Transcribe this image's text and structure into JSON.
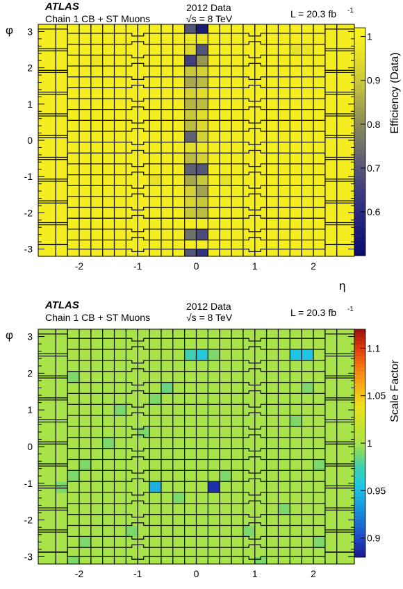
{
  "chart_data": [
    {
      "type": "heatmap",
      "experiment": "ATLAS",
      "selection": "Chain 1 CB + ST Muons",
      "dataset": "2012 Data",
      "energy": "√s = 8 TeV",
      "luminosity": "L = 20.3 fb",
      "lumi_exponent": "-1",
      "xlabel": "η",
      "ylabel": "φ",
      "zlabel": "Efficiency (Data)",
      "xlim": [
        -2.7,
        2.7
      ],
      "ylim": [
        -3.2,
        3.2
      ],
      "zlim": [
        0.5,
        1.02
      ],
      "xticks": [
        {
          "v": -2,
          "t": "-2"
        },
        {
          "v": -1,
          "t": "-1"
        },
        {
          "v": 0,
          "t": "0"
        },
        {
          "v": 1,
          "t": "1"
        },
        {
          "v": 2,
          "t": "2"
        }
      ],
      "yticks": [
        {
          "v": -3,
          "t": "-3"
        },
        {
          "v": -2,
          "t": "-2"
        },
        {
          "v": -1,
          "t": "-1"
        },
        {
          "v": 0,
          "t": "0"
        },
        {
          "v": 1,
          "t": "1"
        },
        {
          "v": 2,
          "t": "2"
        },
        {
          "v": 3,
          "t": "3"
        }
      ],
      "zticks": [
        {
          "v": 0.6,
          "t": "0.6"
        },
        {
          "v": 0.7,
          "t": "0.7"
        },
        {
          "v": 0.8,
          "t": "0.8"
        },
        {
          "v": 0.9,
          "t": "0.9"
        },
        {
          "v": 1,
          "t": "1"
        }
      ],
      "colorscale": [
        [
          0.5,
          "#0b0b6e"
        ],
        [
          0.6,
          "#2a2a82"
        ],
        [
          0.7,
          "#55557a"
        ],
        [
          0.8,
          "#8a8a5a"
        ],
        [
          0.9,
          "#c9c83a"
        ],
        [
          0.97,
          "#ece625"
        ],
        [
          1.02,
          "#fbf51c"
        ]
      ],
      "eta_edges": [
        -2.7,
        -2.4,
        -2.2,
        -2.0,
        -1.8,
        -1.6,
        -1.4,
        -1.2,
        -1.0,
        -0.8,
        -0.6,
        -0.4,
        -0.2,
        0,
        0.2,
        0.4,
        0.6,
        0.8,
        1.0,
        1.2,
        1.4,
        1.6,
        1.8,
        2.0,
        2.2,
        2.4,
        2.7
      ],
      "phi_edges": [
        -3.2,
        -3.0,
        -2.75,
        -2.45,
        -2.15,
        -1.85,
        -1.55,
        -1.25,
        -0.95,
        -0.65,
        -0.35,
        -0.05,
        0.25,
        0.55,
        0.85,
        1.15,
        1.45,
        1.75,
        2.05,
        2.35,
        2.65,
        2.95,
        3.2
      ],
      "default_value": 0.995,
      "cells": [
        {
          "eta": -0.1,
          "phi": -3.1,
          "v": 0.7
        },
        {
          "eta": 0.1,
          "phi": -3.1,
          "v": 0.62
        },
        {
          "eta": -0.1,
          "phi": -2.6,
          "v": 0.75
        },
        {
          "eta": 0.1,
          "phi": -2.6,
          "v": 0.68
        },
        {
          "eta": -0.1,
          "phi": -2.0,
          "v": 0.9
        },
        {
          "eta": 0.1,
          "phi": -2.0,
          "v": 0.88
        },
        {
          "eta": -0.1,
          "phi": -1.7,
          "v": 0.93
        },
        {
          "eta": 0.1,
          "phi": -1.7,
          "v": 0.9
        },
        {
          "eta": -0.1,
          "phi": -1.4,
          "v": 0.92
        },
        {
          "eta": 0.1,
          "phi": -1.4,
          "v": 0.84
        },
        {
          "eta": -0.1,
          "phi": -1.1,
          "v": 0.85
        },
        {
          "eta": 0.1,
          "phi": -1.1,
          "v": 0.9
        },
        {
          "eta": -0.1,
          "phi": -0.8,
          "v": 0.72
        },
        {
          "eta": 0.1,
          "phi": -0.8,
          "v": 0.7
        },
        {
          "eta": -0.1,
          "phi": -0.5,
          "v": 0.88
        },
        {
          "eta": 0.1,
          "phi": -0.5,
          "v": 0.92
        },
        {
          "eta": -0.1,
          "phi": -0.2,
          "v": 0.95
        },
        {
          "eta": 0.1,
          "phi": -0.2,
          "v": 0.97
        },
        {
          "eta": -0.1,
          "phi": 0.1,
          "v": 0.72
        },
        {
          "eta": 0.1,
          "phi": 0.1,
          "v": 0.92
        },
        {
          "eta": -0.1,
          "phi": 0.4,
          "v": 0.88
        },
        {
          "eta": 0.1,
          "phi": 0.4,
          "v": 0.94
        },
        {
          "eta": -0.1,
          "phi": 0.7,
          "v": 0.9
        },
        {
          "eta": 0.1,
          "phi": 0.7,
          "v": 0.95
        },
        {
          "eta": -0.1,
          "phi": 1.0,
          "v": 0.87
        },
        {
          "eta": 0.1,
          "phi": 1.0,
          "v": 0.88
        },
        {
          "eta": -0.1,
          "phi": 1.3,
          "v": 0.92
        },
        {
          "eta": 0.1,
          "phi": 1.3,
          "v": 0.95
        },
        {
          "eta": -0.1,
          "phi": 1.6,
          "v": 0.85
        },
        {
          "eta": 0.1,
          "phi": 1.6,
          "v": 0.88
        },
        {
          "eta": -0.1,
          "phi": 1.9,
          "v": 0.9
        },
        {
          "eta": 0.1,
          "phi": 1.9,
          "v": 0.92
        },
        {
          "eta": -0.1,
          "phi": 2.2,
          "v": 0.65
        },
        {
          "eta": 0.1,
          "phi": 2.2,
          "v": 0.82
        },
        {
          "eta": -0.1,
          "phi": 2.5,
          "v": 0.94
        },
        {
          "eta": 0.1,
          "phi": 2.5,
          "v": 0.7
        },
        {
          "eta": -0.1,
          "phi": 2.8,
          "v": 0.97
        },
        {
          "eta": 0.1,
          "phi": 2.8,
          "v": 0.97
        },
        {
          "eta": -0.1,
          "phi": 3.05,
          "v": 0.7
        },
        {
          "eta": 0.1,
          "phi": 3.05,
          "v": 0.55
        },
        {
          "eta": -0.7,
          "phi": -1.1,
          "v": 0.96
        },
        {
          "eta": 0.5,
          "phi": -1.1,
          "v": 0.96
        },
        {
          "eta": -1.7,
          "phi": 2.2,
          "v": 0.97
        },
        {
          "eta": 1.7,
          "phi": 2.5,
          "v": 0.96
        },
        {
          "eta": 1.9,
          "phi": 2.5,
          "v": 0.97
        }
      ]
    },
    {
      "type": "heatmap",
      "experiment": "ATLAS",
      "selection": "Chain 1 CB + ST Muons",
      "dataset": "2012 Data",
      "energy": "√s = 8 TeV",
      "luminosity": "L = 20.3 fb",
      "lumi_exponent": "-1",
      "xlabel": "η",
      "ylabel": "φ",
      "zlabel": "Scale Factor",
      "xlim": [
        -2.7,
        2.7
      ],
      "ylim": [
        -3.2,
        3.2
      ],
      "zlim": [
        0.88,
        1.12
      ],
      "xticks": [
        {
          "v": -2,
          "t": "-2"
        },
        {
          "v": -1,
          "t": "-1"
        },
        {
          "v": 0,
          "t": "0"
        },
        {
          "v": 1,
          "t": "1"
        },
        {
          "v": 2,
          "t": "2"
        }
      ],
      "yticks": [
        {
          "v": -3,
          "t": "-3"
        },
        {
          "v": -2,
          "t": "-2"
        },
        {
          "v": -1,
          "t": "-1"
        },
        {
          "v": 0,
          "t": "0"
        },
        {
          "v": 1,
          "t": "1"
        },
        {
          "v": 2,
          "t": "2"
        },
        {
          "v": 3,
          "t": "3"
        }
      ],
      "zticks": [
        {
          "v": 0.9,
          "t": "0.9"
        },
        {
          "v": 0.95,
          "t": "0.95"
        },
        {
          "v": 1,
          "t": "1"
        },
        {
          "v": 1.05,
          "t": "1.05"
        },
        {
          "v": 1.1,
          "t": "1.1"
        }
      ],
      "colorscale": [
        [
          0.88,
          "#1a1a8c"
        ],
        [
          0.9,
          "#1c46c8"
        ],
        [
          0.93,
          "#1a90dd"
        ],
        [
          0.955,
          "#1ec6e6"
        ],
        [
          0.975,
          "#3ed0b0"
        ],
        [
          0.99,
          "#7dd86a"
        ],
        [
          1.0,
          "#a8e34a"
        ],
        [
          1.02,
          "#c9e32c"
        ],
        [
          1.04,
          "#f0de1e"
        ],
        [
          1.06,
          "#f7ad16"
        ],
        [
          1.08,
          "#f47a12"
        ],
        [
          1.1,
          "#e03a0c"
        ],
        [
          1.12,
          "#a01010"
        ]
      ],
      "eta_edges": [
        -2.7,
        -2.4,
        -2.2,
        -2.0,
        -1.8,
        -1.6,
        -1.4,
        -1.2,
        -1.0,
        -0.8,
        -0.6,
        -0.4,
        -0.2,
        0,
        0.2,
        0.4,
        0.6,
        0.8,
        1.0,
        1.2,
        1.4,
        1.6,
        1.8,
        2.0,
        2.2,
        2.4,
        2.7
      ],
      "phi_edges": [
        -3.2,
        -3.0,
        -2.75,
        -2.45,
        -2.15,
        -1.85,
        -1.55,
        -1.25,
        -0.95,
        -0.65,
        -0.35,
        -0.05,
        0.25,
        0.55,
        0.85,
        1.15,
        1.45,
        1.75,
        2.05,
        2.35,
        2.65,
        2.95,
        3.2
      ],
      "default_value": 1.0,
      "cells": [
        {
          "eta": -0.1,
          "phi": 2.5,
          "v": 0.975
        },
        {
          "eta": 0.1,
          "phi": 2.5,
          "v": 0.96
        },
        {
          "eta": 1.7,
          "phi": 2.5,
          "v": 0.955
        },
        {
          "eta": 1.9,
          "phi": 2.5,
          "v": 0.955
        },
        {
          "eta": -0.7,
          "phi": -1.1,
          "v": 0.945
        },
        {
          "eta": 0.3,
          "phi": -1.1,
          "v": 0.89
        },
        {
          "eta": -0.5,
          "phi": 1.6,
          "v": 0.985
        },
        {
          "eta": -0.7,
          "phi": 1.3,
          "v": 0.99
        },
        {
          "eta": -2.1,
          "phi": -3.05,
          "v": 0.99
        },
        {
          "eta": -1.9,
          "phi": -2.6,
          "v": 0.99
        },
        {
          "eta": -2.3,
          "phi": -1.1,
          "v": 0.99
        },
        {
          "eta": -2.1,
          "phi": -0.8,
          "v": 0.99
        },
        {
          "eta": -1.9,
          "phi": -0.5,
          "v": 0.99
        },
        {
          "eta": -2.1,
          "phi": 1.9,
          "v": 0.99
        },
        {
          "eta": 2.1,
          "phi": -2.6,
          "v": 0.99
        },
        {
          "eta": 1.5,
          "phi": -1.7,
          "v": 0.99
        },
        {
          "eta": 2.1,
          "phi": -0.5,
          "v": 0.99
        },
        {
          "eta": 1.9,
          "phi": 1.6,
          "v": 0.99
        },
        {
          "eta": 1.7,
          "phi": 0.7,
          "v": 0.99
        },
        {
          "eta": -0.3,
          "phi": -1.4,
          "v": 0.99
        },
        {
          "eta": 0.5,
          "phi": -0.8,
          "v": 0.99
        },
        {
          "eta": 0.3,
          "phi": 2.5,
          "v": 0.99
        },
        {
          "eta": -1.1,
          "phi": -2.3,
          "v": 0.99
        },
        {
          "eta": 0.9,
          "phi": -2.3,
          "v": 0.99
        },
        {
          "eta": 1.1,
          "phi": -3.05,
          "v": 0.99
        },
        {
          "eta": -1.5,
          "phi": 0.1,
          "v": 0.99
        },
        {
          "eta": -0.9,
          "phi": 0.4,
          "v": 0.99
        },
        {
          "eta": -1.3,
          "phi": 1.0,
          "v": 0.99
        }
      ]
    }
  ]
}
